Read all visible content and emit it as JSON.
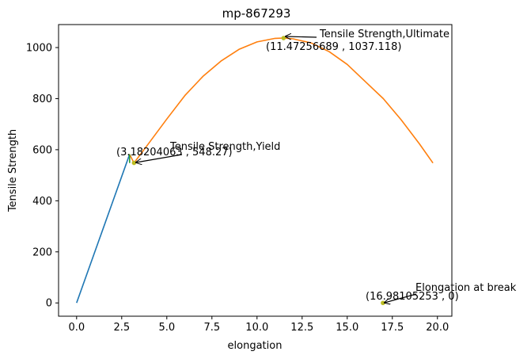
{
  "chart_data": {
    "type": "line",
    "title": "mp-867293",
    "xlabel": "elongation",
    "ylabel": "Tensile Strength",
    "xlim": [
      -1.0,
      20.8
    ],
    "ylim": [
      -52,
      1090
    ],
    "xticks": [
      0.0,
      2.5,
      5.0,
      7.5,
      10.0,
      12.5,
      15.0,
      17.5,
      20.0
    ],
    "xtick_labels": [
      "0.0",
      "2.5",
      "5.0",
      "7.5",
      "10.0",
      "12.5",
      "15.0",
      "17.5",
      "20.0"
    ],
    "yticks": [
      0,
      200,
      400,
      600,
      800,
      1000
    ],
    "ytick_labels": [
      "0",
      "200",
      "400",
      "600",
      "800",
      "1000"
    ],
    "grid": false,
    "series": [
      {
        "color": "#1f77b4",
        "x": [
          0.0,
          2.94
        ],
        "y": [
          0,
          582
        ]
      },
      {
        "color": "#ff7f0e",
        "x": [
          2.94,
          3.182,
          4.0,
          5.0,
          6.0,
          7.0,
          8.0,
          9.0,
          10.0,
          11.0,
          11.473,
          12.0,
          13.0,
          14.0,
          15.0,
          16.0,
          17.0,
          18.0,
          19.0,
          19.75
        ],
        "y": [
          582,
          548.27,
          625,
          720,
          812,
          887,
          947,
          993,
          1022,
          1036,
          1037.118,
          1034,
          1018,
          984,
          934,
          867,
          800,
          716,
          623,
          548
        ]
      },
      {
        "color": "#2ca02c",
        "x": [
          2.94,
          2.94
        ],
        "y": [
          548,
          582
        ]
      }
    ],
    "points": [
      {
        "x": 3.18204063,
        "y": 548.27,
        "color": "#bcbd22"
      },
      {
        "x": 11.47256689,
        "y": 1037.118,
        "color": "#bcbd22"
      },
      {
        "x": 16.98105253,
        "y": 0,
        "color": "#bcbd22"
      }
    ],
    "annotations": [
      {
        "label": "Tensile Strength,Yield",
        "coords": "(3.18204063 , 548.27)",
        "target_x": 3.18204063,
        "target_y": 548.27
      },
      {
        "label": "Tensile Strength,Ultimate",
        "coords": "(11.47256689 , 1037.118)",
        "target_x": 11.47256689,
        "target_y": 1037.118
      },
      {
        "label": "Elongation at break",
        "coords": "(16.98105253 , 0)",
        "target_x": 16.98105253,
        "target_y": 0
      }
    ]
  }
}
